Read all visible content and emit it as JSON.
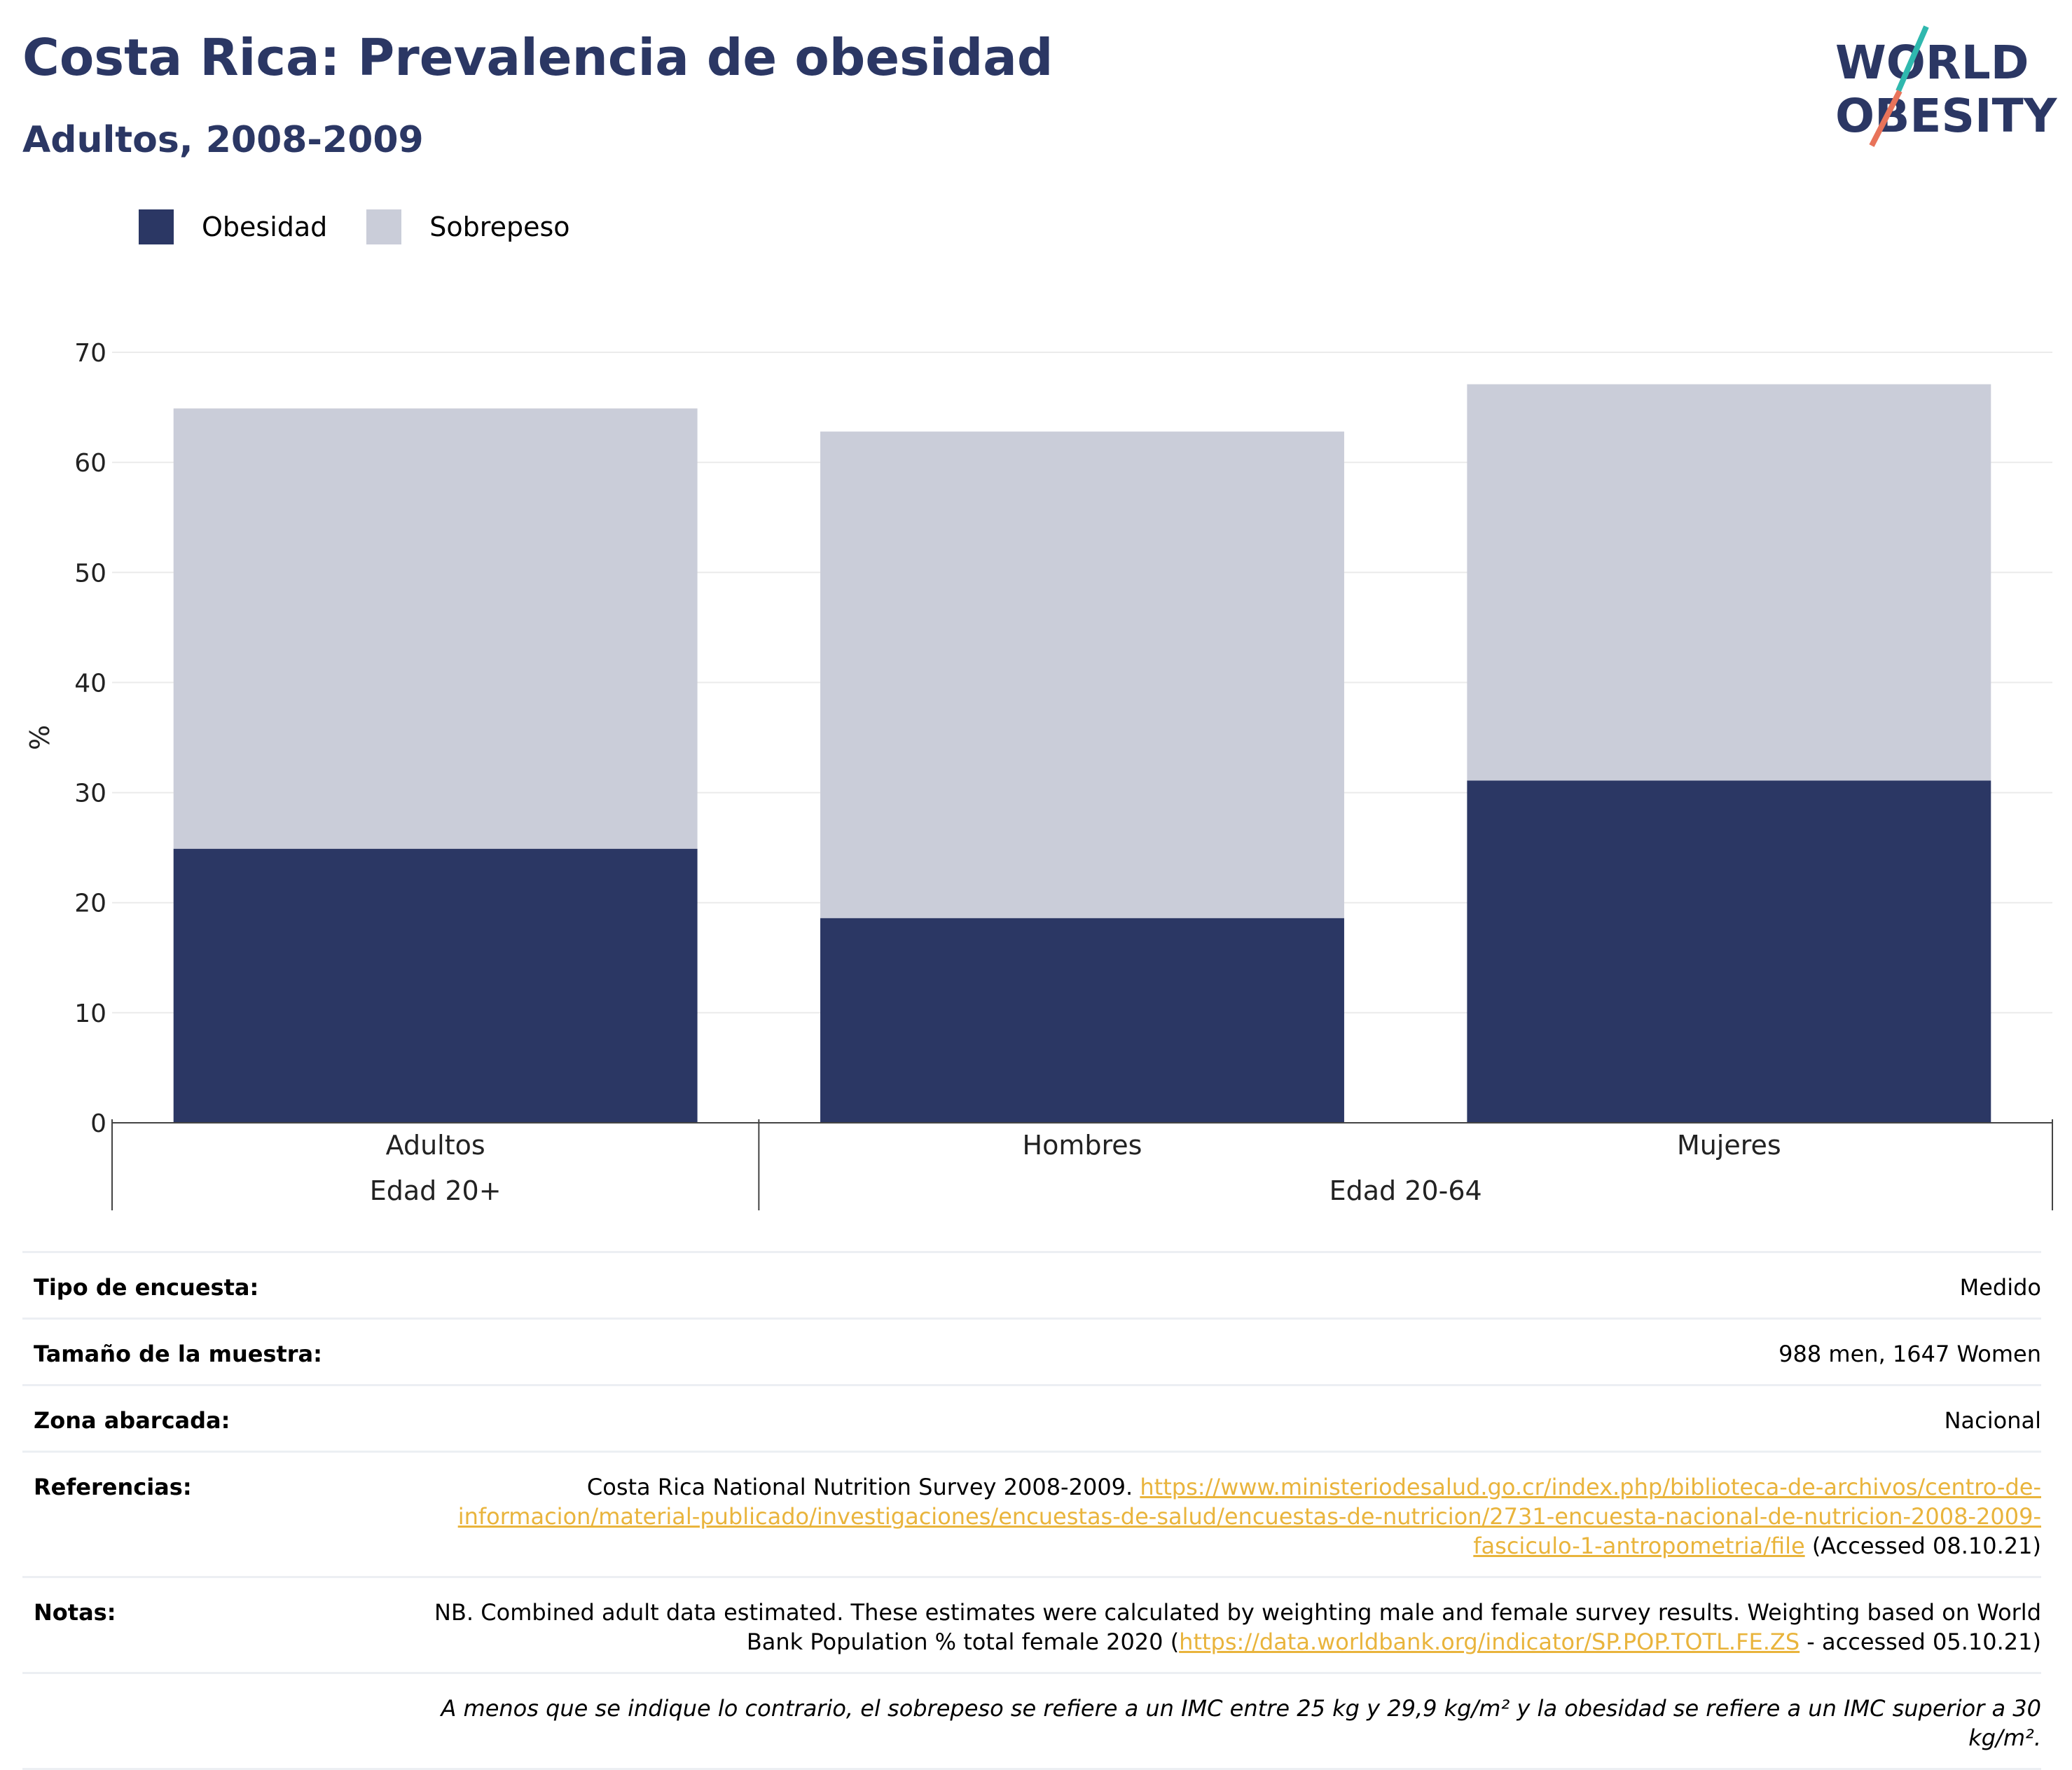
{
  "header": {
    "title": "Costa Rica: Prevalencia de obesidad",
    "subtitle": "Adultos, 2008-2009",
    "logo_line1": "WORLD",
    "logo_line2": "OBESITY"
  },
  "colors": {
    "obesity": "#2b3764",
    "overweight": "#cacdd9",
    "title": "#2b3764",
    "link": "#e9b43c",
    "logo_teal": "#2fb8ae",
    "logo_coral": "#e8735a"
  },
  "chart_data": {
    "type": "bar",
    "stacked": true,
    "categories": [
      "Adultos",
      "Hombres",
      "Mujeres"
    ],
    "groups": [
      {
        "label": "Edad 20+",
        "categories": [
          "Adultos"
        ]
      },
      {
        "label": "Edad 20-64",
        "categories": [
          "Hombres",
          "Mujeres"
        ]
      }
    ],
    "series": [
      {
        "name": "Obesidad",
        "values": [
          24.9,
          18.6,
          31.1
        ],
        "color": "#2b3764"
      },
      {
        "name": "Sobrepeso",
        "values": [
          40.0,
          44.2,
          36.0
        ],
        "color": "#cacdd9"
      }
    ],
    "ylabel": "%",
    "ylim": [
      0,
      70
    ],
    "yticks": [
      0,
      10,
      20,
      30,
      40,
      50,
      60,
      70
    ],
    "grid": true,
    "legend_position": "top-left"
  },
  "info": {
    "survey_type_label": "Tipo de encuesta:",
    "survey_type_value": "Medido",
    "sample_size_label": "Tamaño de la muestra:",
    "sample_size_value": "988 men, 1647 Women",
    "area_label": "Zona abarcada:",
    "area_value": "Nacional",
    "references_label": "Referencias:",
    "references_text": "Costa Rica National Nutrition Survey 2008-2009.",
    "references_link": "https://www.ministeriodesalud.go.cr/index.php/biblioteca-de-archivos/centro-de-informacion/material-publicado/investigaciones/encuestas-de-salud/encuestas-de-nutricion/2731-encuesta-nacional-de-nutricion-2008-2009-fasciculo-1-antropometria/file",
    "references_suffix": "(Accessed 08.10.21)",
    "notes_label": "Notas:",
    "notes_text": "NB. Combined adult data estimated. These estimates were calculated by weighting male and female survey results. Weighting based on World Bank Population % total female 2020 (",
    "notes_link": "https://data.worldbank.org/indicator/SP.POP.TOTL.FE.ZS",
    "notes_suffix": " - accessed 05.10.21)",
    "footnote": "A menos que se indique lo contrario, el sobrepeso se refiere a un IMC entre 25 kg y 29,9 kg/m² y la obesidad se refiere a un IMC superior a 30 kg/m²."
  }
}
